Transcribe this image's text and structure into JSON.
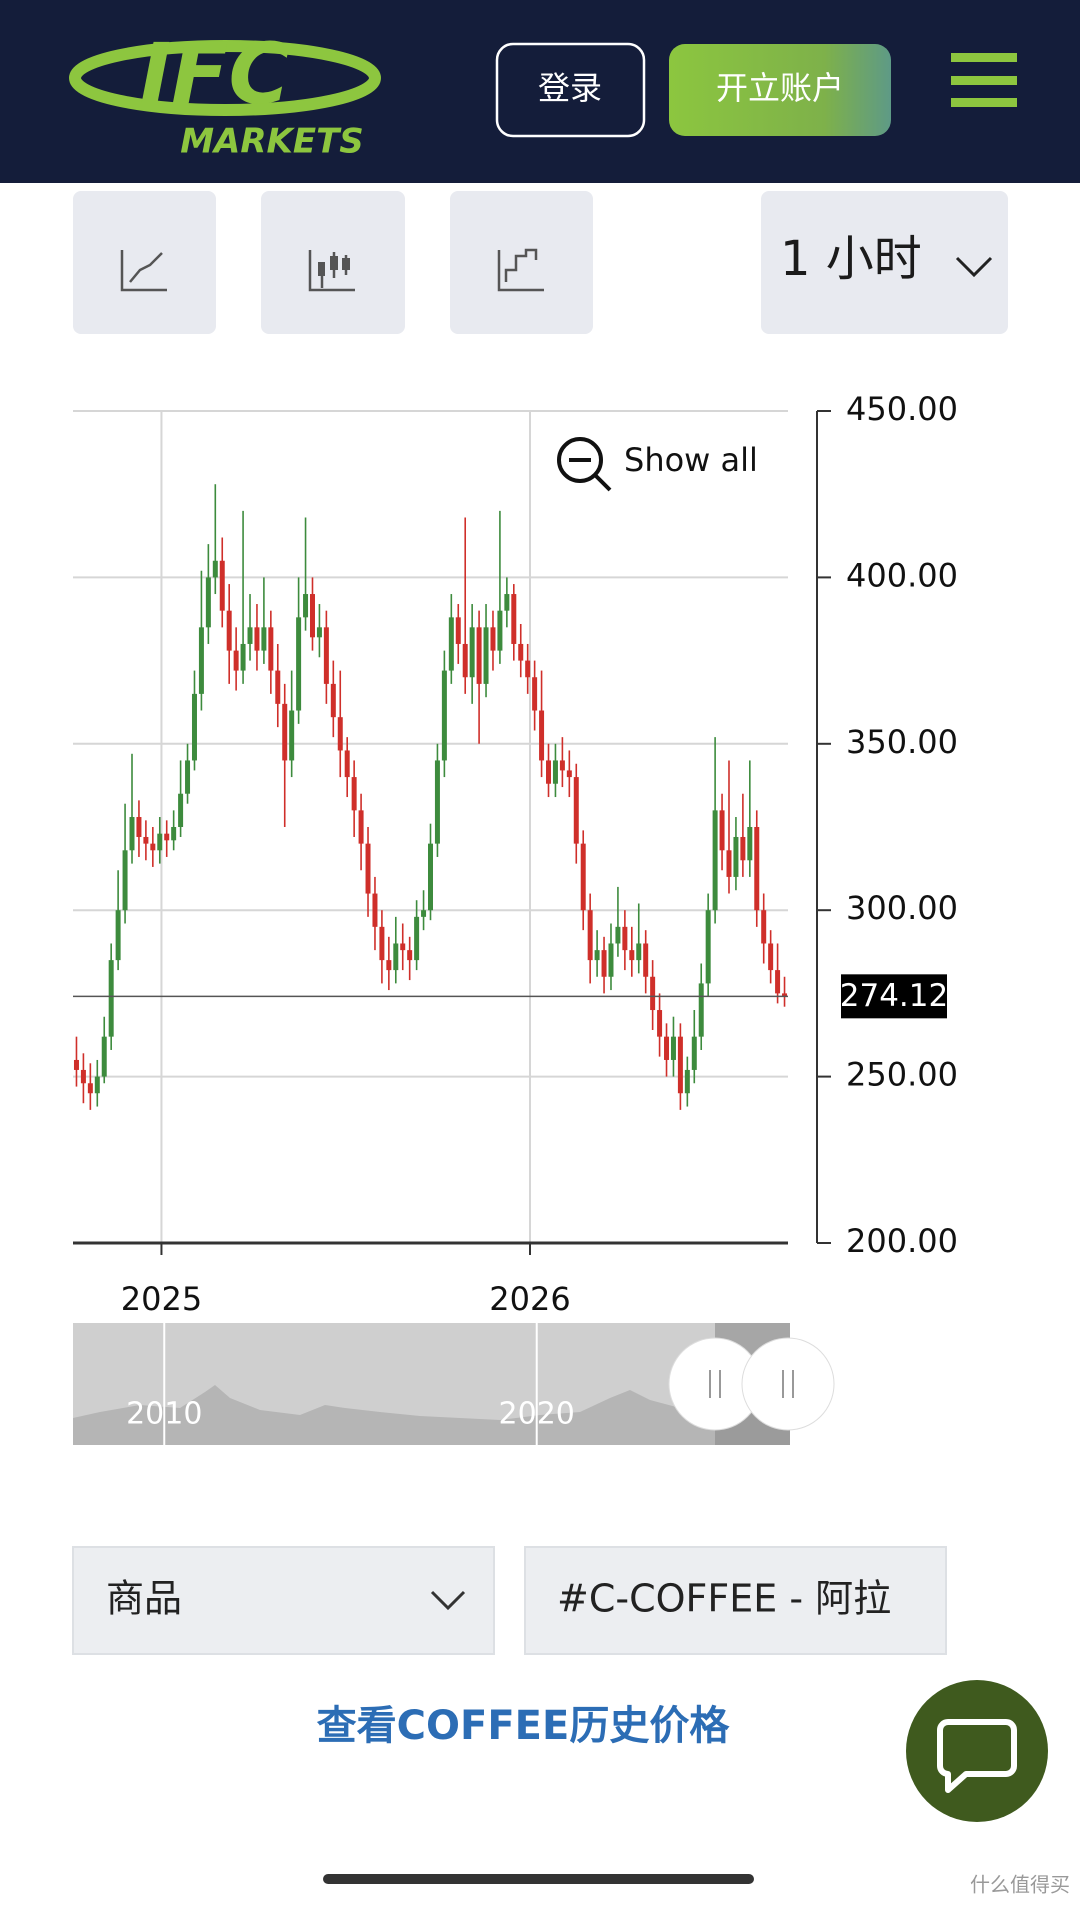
{
  "header": {
    "logo": "IFC",
    "logo_sub": "MARKETS",
    "login": "登录",
    "open_account": "开立账户"
  },
  "toolbar": {
    "interval": "1 小时"
  },
  "chart_data": {
    "type": "candlestick",
    "show_all": "Show all",
    "grid": true,
    "xlim": [
      2024.76,
      2026.7
    ],
    "xticks": [
      2025,
      2026
    ],
    "ylim": [
      200,
      450
    ],
    "yticks": [
      {
        "value": 200,
        "label": "200.00"
      },
      {
        "value": 250,
        "label": "250.00"
      },
      {
        "value": 300,
        "label": "300.00"
      },
      {
        "value": 350,
        "label": "350.00"
      },
      {
        "value": 400,
        "label": "400.00"
      },
      {
        "value": 450,
        "label": "450.00"
      }
    ],
    "up_color": "#3d8b3d",
    "down_color": "#cf2f2a",
    "last_price": 274.12,
    "open": [
      255,
      252,
      248,
      245,
      250,
      262,
      285,
      300,
      318,
      328,
      322,
      320,
      318,
      323,
      321,
      325,
      335,
      345,
      365,
      385,
      400,
      405,
      390,
      378,
      372,
      380,
      385,
      378,
      385,
      372,
      362,
      345,
      360,
      388,
      395,
      382,
      385,
      368,
      358,
      348,
      340,
      330,
      320,
      305,
      295,
      285,
      282,
      290,
      288,
      285,
      298,
      300,
      320,
      345,
      372,
      388,
      380,
      370,
      385,
      368,
      385,
      378,
      390,
      395,
      380,
      375,
      370,
      360,
      345,
      338,
      345,
      342,
      340,
      320,
      300,
      285,
      288,
      280,
      290,
      295,
      288,
      285,
      290,
      280,
      270,
      262,
      255,
      262,
      245,
      252,
      262,
      278,
      300,
      330,
      318,
      310,
      322,
      315,
      325,
      300,
      290,
      282,
      275
    ],
    "high": [
      262,
      257,
      254,
      255,
      268,
      290,
      312,
      332,
      347,
      333,
      327,
      325,
      328,
      327,
      330,
      345,
      350,
      372,
      402,
      410,
      428,
      412,
      398,
      385,
      420,
      395,
      392,
      400,
      390,
      380,
      368,
      372,
      400,
      418,
      400,
      392,
      390,
      375,
      372,
      352,
      345,
      335,
      325,
      310,
      300,
      292,
      298,
      296,
      292,
      303,
      306,
      326,
      350,
      378,
      395,
      392,
      418,
      392,
      390,
      392,
      390,
      420,
      400,
      398,
      386,
      380,
      375,
      372,
      350,
      350,
      352,
      348,
      344,
      324,
      305,
      294,
      292,
      296,
      307,
      300,
      295,
      302,
      294,
      285,
      275,
      266,
      268,
      266,
      256,
      270,
      284,
      305,
      352,
      335,
      345,
      328,
      335,
      345,
      330,
      305,
      294,
      290,
      280
    ],
    "low": [
      247,
      242,
      240,
      241,
      248,
      258,
      282,
      296,
      314,
      316,
      315,
      313,
      314,
      316,
      318,
      322,
      332,
      342,
      360,
      380,
      395,
      385,
      368,
      366,
      368,
      375,
      372,
      374,
      365,
      355,
      325,
      340,
      356,
      384,
      378,
      376,
      362,
      352,
      340,
      334,
      322,
      312,
      298,
      288,
      278,
      276,
      278,
      282,
      279,
      282,
      294,
      297,
      316,
      340,
      368,
      374,
      365,
      362,
      350,
      364,
      372,
      374,
      385,
      375,
      370,
      365,
      354,
      340,
      334,
      334,
      337,
      334,
      314,
      294,
      278,
      280,
      275,
      276,
      286,
      282,
      280,
      281,
      275,
      264,
      256,
      250,
      250,
      240,
      241,
      248,
      258,
      274,
      296,
      312,
      305,
      306,
      310,
      310,
      295,
      284,
      278,
      272,
      271
    ],
    "close": [
      252,
      248,
      245,
      250,
      262,
      285,
      300,
      318,
      328,
      322,
      320,
      318,
      323,
      321,
      325,
      335,
      345,
      365,
      385,
      400,
      405,
      390,
      378,
      372,
      380,
      385,
      378,
      385,
      372,
      362,
      345,
      360,
      388,
      395,
      382,
      385,
      368,
      358,
      348,
      340,
      330,
      320,
      305,
      295,
      285,
      282,
      290,
      288,
      285,
      298,
      300,
      320,
      345,
      372,
      388,
      380,
      370,
      385,
      368,
      385,
      378,
      390,
      395,
      380,
      375,
      370,
      360,
      345,
      338,
      345,
      342,
      340,
      320,
      300,
      285,
      288,
      280,
      290,
      295,
      288,
      285,
      290,
      280,
      270,
      262,
      255,
      262,
      245,
      252,
      262,
      278,
      300,
      330,
      318,
      310,
      322,
      315,
      325,
      300,
      290,
      282,
      275,
      274.12
    ],
    "navigator": {
      "xlim": [
        2007.55,
        2026.8
      ],
      "xticks": [
        2010,
        2020
      ]
    }
  },
  "filters": {
    "category": "商品",
    "instrument": "#C-COFFEE - 阿拉"
  },
  "link": "查看COFFEE历史价格",
  "watermark": "什么值得买"
}
